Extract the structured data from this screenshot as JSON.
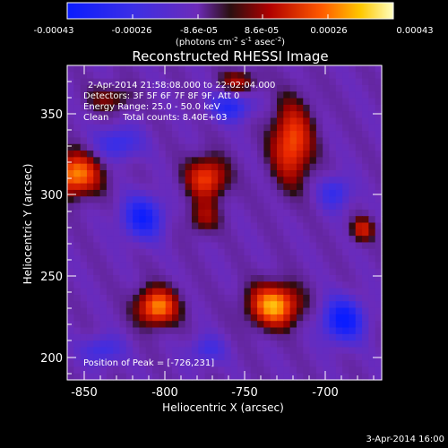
{
  "colorbar": {
    "ticks": [
      "-0.00043",
      "-0.00026",
      "-8.6e-05",
      "8.6e-05",
      "0.00026",
      "0.00043"
    ],
    "units_main": "(photons cm",
    "units_exp1": "-2",
    "units_s": " s",
    "units_exp2": "-1",
    "units_asec": " asec",
    "units_exp3": "-2",
    "units_close": ")"
  },
  "plot": {
    "title": "Reconstructed RHESSI Image",
    "xlabel": "Heliocentric X (arcsec)",
    "ylabel": "Heliocentric Y (arcsec)",
    "xticks": [
      "-850",
      "-800",
      "-750",
      "-700"
    ],
    "yticks": [
      "350",
      "300",
      "250",
      "200"
    ],
    "info": {
      "line1": "2-Apr-2014 21:58:08.000 to 22:02:04.000",
      "line2": "Detectors: 3F 5F 6F 7F 8F 9F, Att 0",
      "line3": "Energy Range: 25.0 - 50.0 keV",
      "line4": "Clean     Total counts: 8.40E+03"
    },
    "peak": "Position of Peak = [-726,231]"
  },
  "footer_date": "3-Apr-2014 16:00",
  "colors": {
    "background": "#000000",
    "text": "#ffffff",
    "min": "#0a1cff",
    "mid": "#6d2bb8",
    "max": "#ffffc0"
  },
  "chart_data": {
    "type": "heatmap",
    "title": "Reconstructed RHESSI Image",
    "xlabel": "Heliocentric X (arcsec)",
    "ylabel": "Heliocentric Y (arcsec)",
    "xlim": [
      -862,
      -666
    ],
    "ylim": [
      192,
      382
    ],
    "colorbar_range": [
      -0.00043,
      0.00043
    ],
    "peak": [
      -726,
      231
    ],
    "sources": [
      {
        "x": -733,
        "y": 237,
        "amp": 1.0,
        "sx": 11,
        "sy": 9
      },
      {
        "x": -806,
        "y": 236,
        "amp": 0.9,
        "sx": 9,
        "sy": 8
      },
      {
        "x": -857,
        "y": 316,
        "amp": 0.9,
        "sx": 11,
        "sy": 9
      },
      {
        "x": -722,
        "y": 335,
        "amp": 0.78,
        "sx": 9,
        "sy": 17
      },
      {
        "x": -775,
        "y": 314,
        "amp": 0.72,
        "sx": 9,
        "sy": 9
      },
      {
        "x": -777,
        "y": 290,
        "amp": 0.4,
        "sx": 7,
        "sy": 7
      },
      {
        "x": -678,
        "y": 283,
        "amp": 0.55,
        "sx": 5,
        "sy": 5
      },
      {
        "x": -755,
        "y": 372,
        "amp": 0.45,
        "sx": 8,
        "sy": 5
      },
      {
        "x": -835,
        "y": 362,
        "amp": 0.35,
        "sx": 10,
        "sy": 6
      },
      {
        "x": -815,
        "y": 290,
        "amp": -0.7,
        "sx": 9,
        "sy": 9
      },
      {
        "x": -690,
        "y": 228,
        "amp": -0.8,
        "sx": 9,
        "sy": 9
      },
      {
        "x": -760,
        "y": 357,
        "amp": -0.55,
        "sx": 9,
        "sy": 6
      },
      {
        "x": -830,
        "y": 335,
        "amp": -0.45,
        "sx": 10,
        "sy": 7
      },
      {
        "x": -840,
        "y": 210,
        "amp": -0.4,
        "sx": 9,
        "sy": 6
      },
      {
        "x": -695,
        "y": 305,
        "amp": -0.45,
        "sx": 7,
        "sy": 7
      },
      {
        "x": -775,
        "y": 210,
        "amp": -0.35,
        "sx": 8,
        "sy": 6
      }
    ]
  }
}
